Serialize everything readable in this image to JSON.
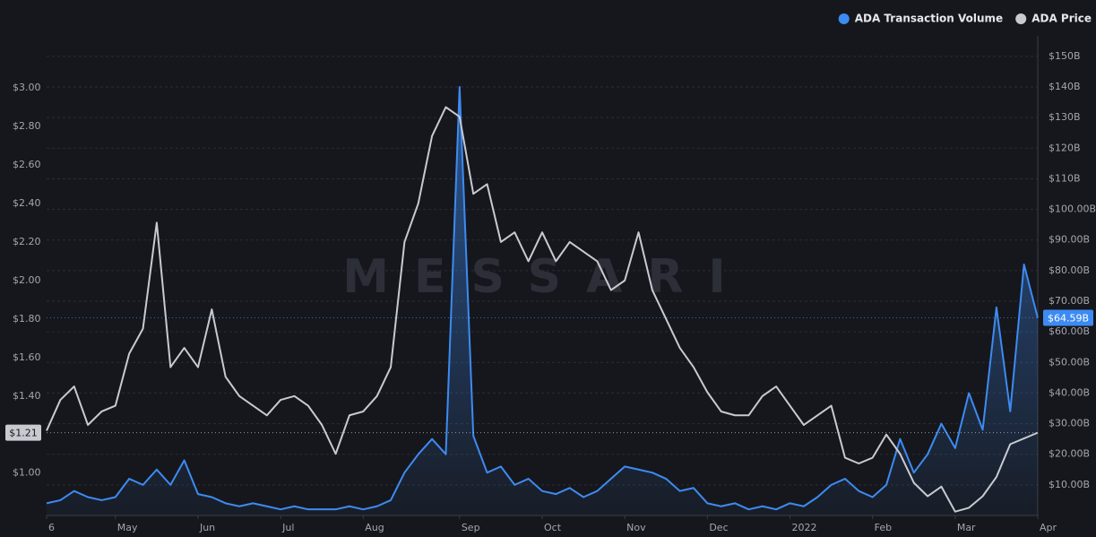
{
  "chart_data": {
    "type": "line",
    "watermark": "MESSARI",
    "categories": [
      "6",
      null,
      null,
      null,
      null,
      "May",
      null,
      null,
      null,
      null,
      null,
      "Jun",
      null,
      null,
      null,
      null,
      null,
      "Jul",
      null,
      null,
      null,
      null,
      null,
      "Aug",
      null,
      null,
      null,
      null,
      null,
      null,
      "Sep",
      null,
      null,
      null,
      null,
      null,
      "Oct",
      null,
      null,
      null,
      null,
      null,
      "Nov",
      null,
      null,
      null,
      null,
      null,
      "Dec",
      null,
      null,
      null,
      null,
      null,
      "2022",
      null,
      null,
      null,
      null,
      null,
      "Feb",
      null,
      null,
      null,
      null,
      null,
      "Mar",
      null,
      null,
      null,
      null,
      null,
      "Apr"
    ],
    "series": [
      {
        "name": "ADA Transaction Volume",
        "color": "#3d8bf2",
        "axis": "y2",
        "area": true,
        "values": [
          4,
          5,
          8,
          6,
          5,
          6,
          12,
          10,
          15,
          10,
          18,
          7,
          6,
          4,
          3,
          4,
          3,
          2,
          3,
          2,
          2,
          2,
          3,
          2,
          3,
          5,
          14,
          20,
          25,
          20,
          140,
          26,
          14,
          16,
          10,
          12,
          8,
          7,
          9,
          6,
          8,
          12,
          16,
          15,
          14,
          12,
          8,
          9,
          4,
          3,
          4,
          2,
          3,
          2,
          4,
          3,
          6,
          10,
          12,
          8,
          6,
          10,
          25,
          14,
          20,
          30,
          22,
          40,
          28,
          68,
          34,
          82,
          64.59
        ]
      },
      {
        "name": "ADA Price",
        "color": "#c9cad1",
        "axis": "y",
        "values": [
          1.22,
          1.38,
          1.45,
          1.25,
          1.32,
          1.35,
          1.62,
          1.75,
          2.3,
          1.55,
          1.65,
          1.55,
          1.85,
          1.5,
          1.4,
          1.35,
          1.3,
          1.38,
          1.4,
          1.35,
          1.25,
          1.1,
          1.3,
          1.32,
          1.4,
          1.55,
          2.2,
          2.4,
          2.75,
          2.9,
          2.85,
          2.45,
          2.5,
          2.2,
          2.25,
          2.1,
          2.25,
          2.1,
          2.2,
          2.15,
          2.1,
          1.95,
          2.0,
          2.25,
          1.95,
          1.8,
          1.65,
          1.55,
          1.42,
          1.32,
          1.3,
          1.3,
          1.4,
          1.45,
          1.35,
          1.25,
          1.3,
          1.35,
          1.08,
          1.05,
          1.08,
          1.2,
          1.1,
          0.95,
          0.88,
          0.93,
          0.8,
          0.82,
          0.88,
          0.98,
          1.15,
          1.18,
          1.21
        ]
      }
    ],
    "ylim": [
      0.78,
      3.27
    ],
    "yticks": [
      {
        "value": 1.0,
        "label": "$1.00"
      },
      {
        "value": 1.2,
        "label": "$1.20"
      },
      {
        "value": 1.4,
        "label": "$1.40"
      },
      {
        "value": 1.6,
        "label": "$1.60"
      },
      {
        "value": 1.8,
        "label": "$1.80"
      },
      {
        "value": 2.0,
        "label": "$2.00"
      },
      {
        "value": 2.2,
        "label": "$2.20"
      },
      {
        "value": 2.4,
        "label": "$2.40"
      },
      {
        "value": 2.6,
        "label": "$2.60"
      },
      {
        "value": 2.8,
        "label": "$2.80"
      },
      {
        "value": 3.0,
        "label": "$3.00"
      }
    ],
    "y2lim": [
      0,
      156.7
    ],
    "y2ticks": [
      {
        "value": 10,
        "label": "$10.00B"
      },
      {
        "value": 20,
        "label": "$20.00B"
      },
      {
        "value": 30,
        "label": "$30.00B"
      },
      {
        "value": 40,
        "label": "$40.00B"
      },
      {
        "value": 50,
        "label": "$50.00B"
      },
      {
        "value": 60,
        "label": "$60.00B"
      },
      {
        "value": 70,
        "label": "$70.00B"
      },
      {
        "value": 80,
        "label": "$80.00B"
      },
      {
        "value": 90,
        "label": "$90.00B"
      },
      {
        "value": 100,
        "label": "$100.00B"
      },
      {
        "value": 110,
        "label": "$110B"
      },
      {
        "value": 120,
        "label": "$120B"
      },
      {
        "value": 130,
        "label": "$130B"
      },
      {
        "value": 140,
        "label": "$140B"
      },
      {
        "value": 150,
        "label": "$150B"
      }
    ],
    "grid": true,
    "legend": "top-right",
    "annotations": [
      {
        "axis": "y",
        "value": 1.21,
        "label": "$1.21",
        "color": "#c9cad1"
      },
      {
        "axis": "y2",
        "value": 64.59,
        "label": "$64.59B",
        "color": "#3d8bf2"
      }
    ]
  }
}
